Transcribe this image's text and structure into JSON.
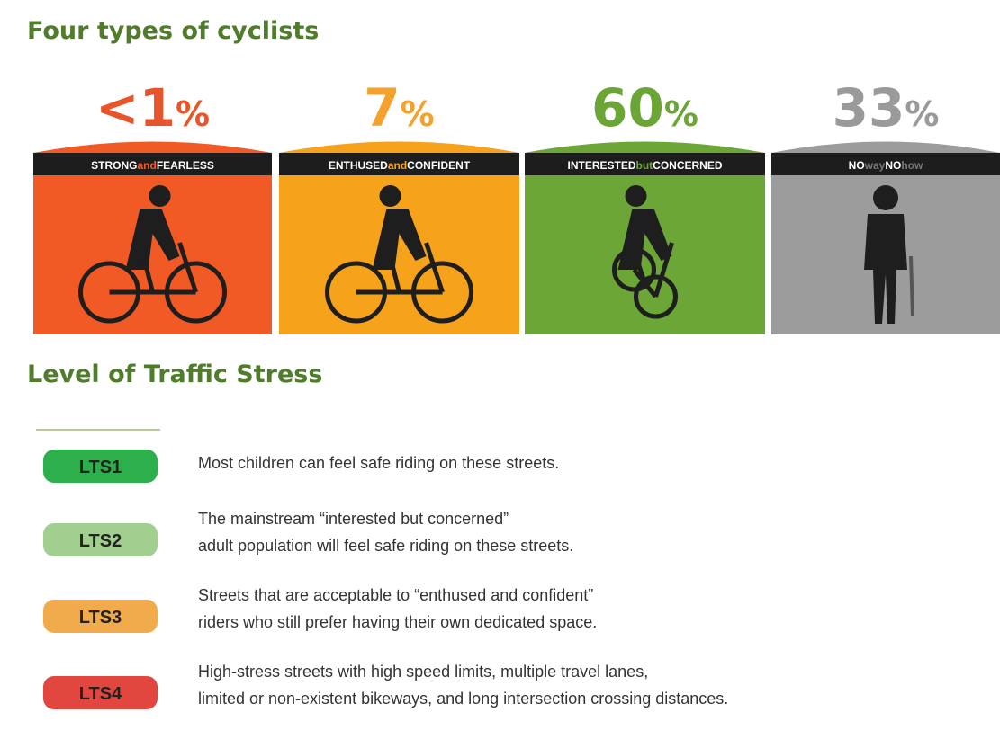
{
  "header": {
    "title": "Four types of cyclists"
  },
  "types": [
    {
      "figure": "<1",
      "unit": "%",
      "label_parts": [
        "STRONG",
        "and",
        "FEARLESS"
      ]
    },
    {
      "figure": "7",
      "unit": "%",
      "label_parts": [
        "ENTHUSED",
        "and",
        "CONFIDENT"
      ]
    },
    {
      "figure": "60",
      "unit": "%",
      "label_parts": [
        "INTERESTED",
        "but",
        "CONCERNED"
      ]
    },
    {
      "figure": "33",
      "unit": "%",
      "label_parts": [
        "NO",
        "way",
        "NO",
        "how"
      ]
    }
  ],
  "stress": {
    "title": "Level of Traffic Stress",
    "levels": [
      {
        "badge": "LTS1",
        "lines": [
          "Most children can feel safe riding on these streets."
        ]
      },
      {
        "badge": "LTS2",
        "lines": [
          "The mainstream “interested but concerned”",
          "adult population will feel safe riding on these streets."
        ]
      },
      {
        "badge": "LTS3",
        "lines": [
          "Streets that are acceptable to “enthused and confident”",
          "riders who still prefer having their own dedicated space."
        ]
      },
      {
        "badge": "LTS4",
        "lines": [
          "High-stress streets with high speed limits, multiple travel lanes,",
          "limited or non-existent bikeways, and long intersection crossing distances."
        ]
      }
    ]
  }
}
